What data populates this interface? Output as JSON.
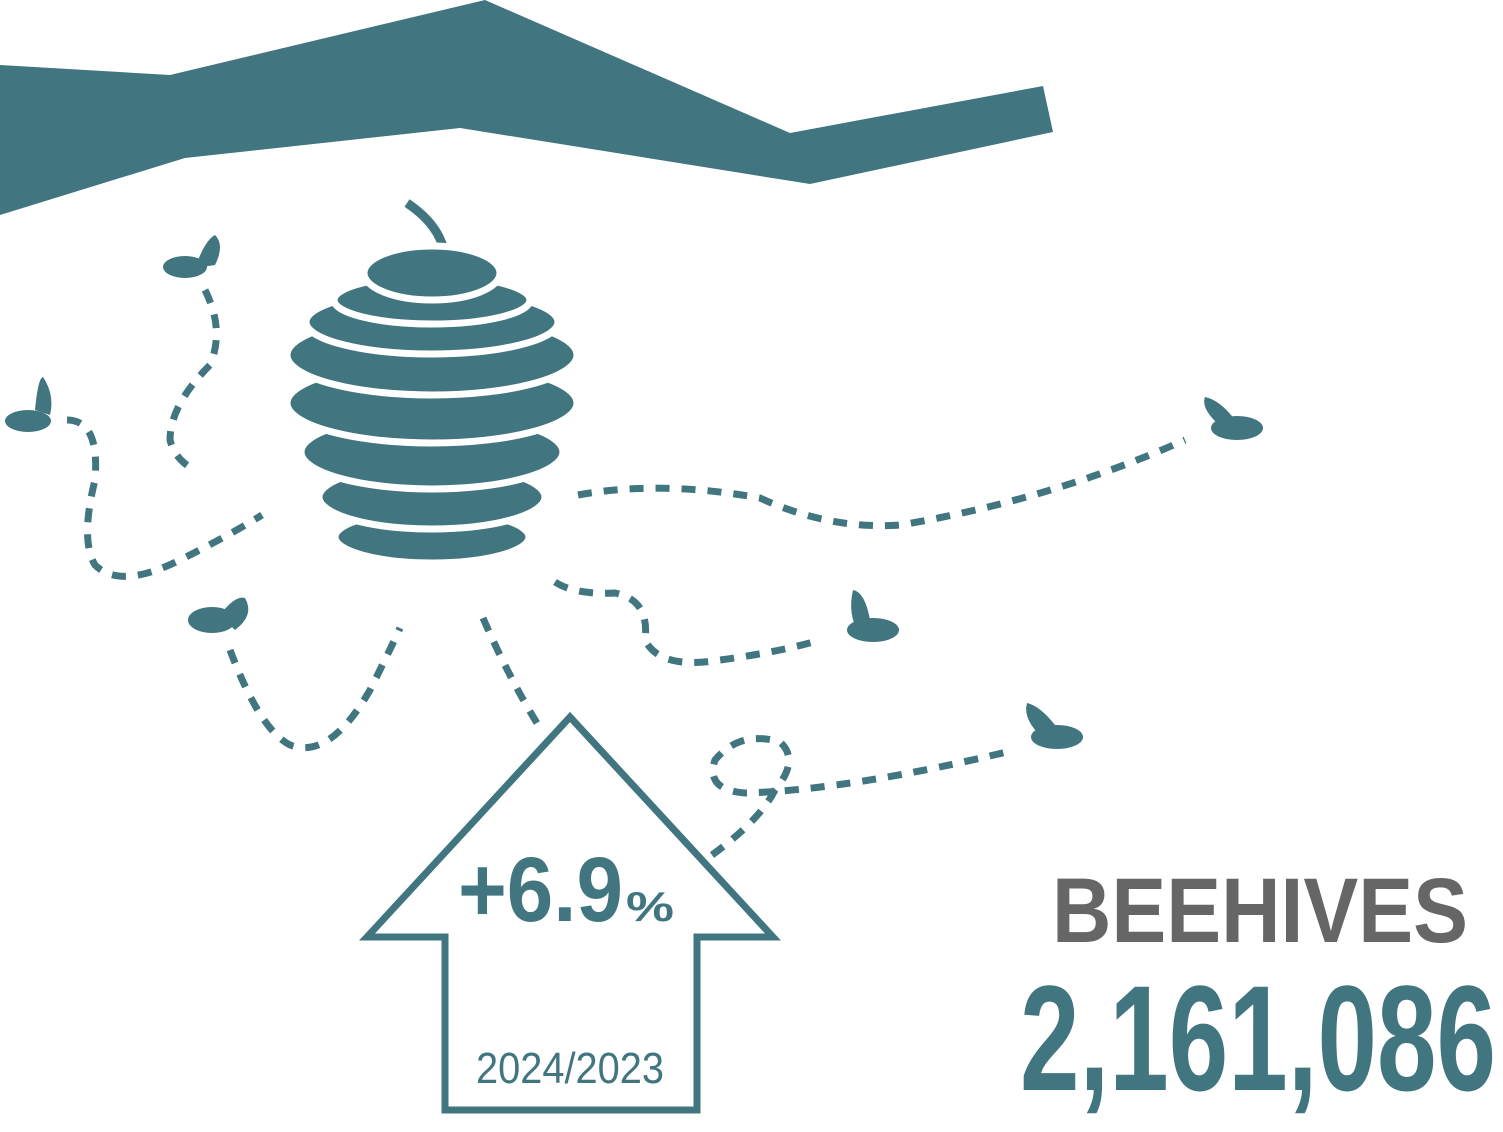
{
  "change": {
    "value": "+6.9",
    "unit": "%"
  },
  "period": "2024/2023",
  "label": "BEEHIVES",
  "count": "2,161,086"
}
